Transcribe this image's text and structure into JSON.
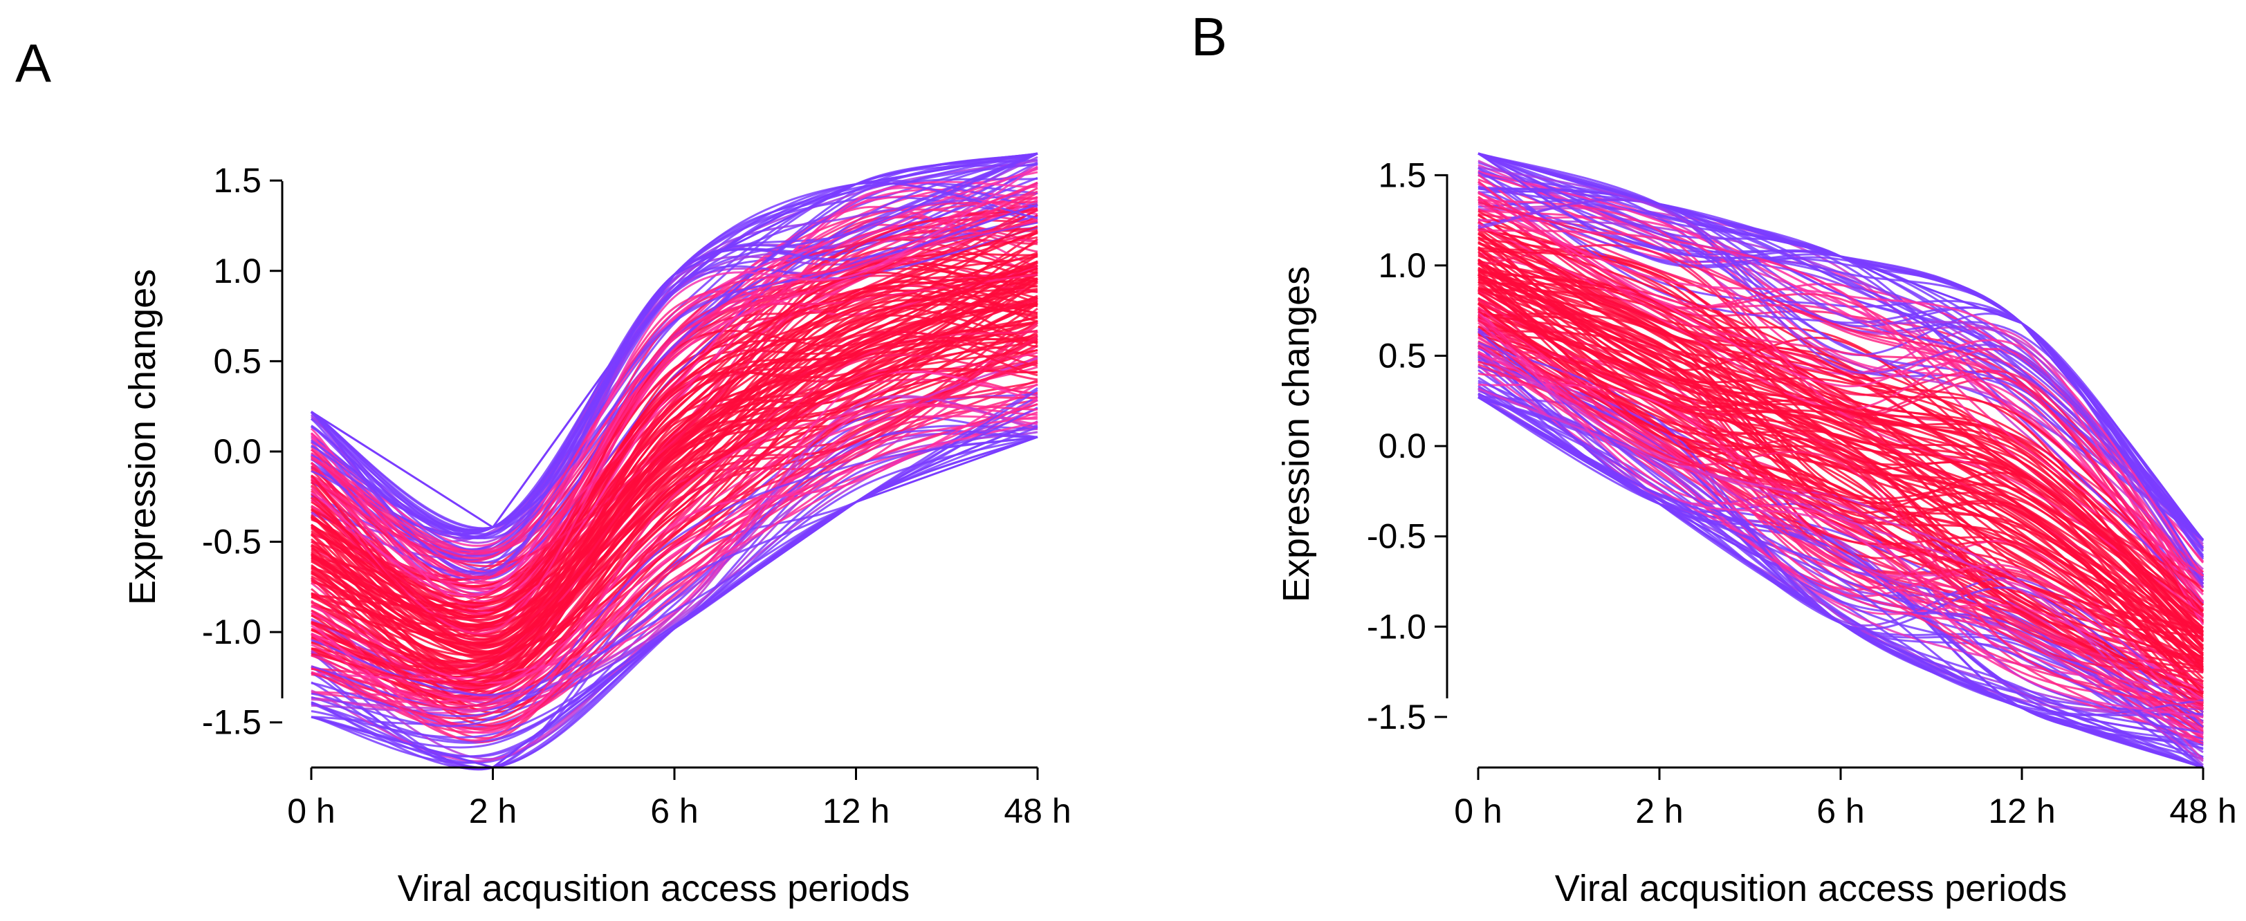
{
  "figure": {
    "colors": {
      "core": "#ff0a3c",
      "mid": "#ff33aa",
      "edge": "#7a3cff",
      "axis": "#000000"
    }
  },
  "chart_data": [
    {
      "panel": "A",
      "type": "line",
      "title": "",
      "xlabel": "Viral acqusition access periods",
      "ylabel": "Expression changes",
      "categories": [
        "0 h",
        "2 h",
        "6 h",
        "12 h",
        "48 h"
      ],
      "x": [
        0,
        1,
        2,
        3,
        4
      ],
      "yticks": [
        -1.5,
        -1.0,
        -0.5,
        0.0,
        0.5,
        1.0,
        1.5
      ],
      "ytick_labels": [
        "-1.5",
        "-1.0",
        "-0.5",
        "0.0",
        "0.5",
        "1.0",
        "1.5"
      ],
      "ylim": [
        -1.75,
        1.65
      ],
      "n_series_approx": 700,
      "series": [
        {
          "name": "upper envelope",
          "values": [
            0.22,
            -0.42,
            0.98,
            1.48,
            1.65
          ]
        },
        {
          "name": "lower envelope",
          "values": [
            -1.47,
            -1.75,
            -0.98,
            -0.28,
            0.08
          ]
        },
        {
          "name": "typical profile",
          "values": [
            -0.7,
            -0.9,
            0.2,
            0.7,
            0.95
          ]
        }
      ]
    },
    {
      "panel": "B",
      "type": "line",
      "title": "",
      "xlabel": "Viral acqusition access periods",
      "ylabel": "Expression changes",
      "categories": [
        "0 h",
        "2 h",
        "6 h",
        "12 h",
        "48 h"
      ],
      "x": [
        0,
        1,
        2,
        3,
        4
      ],
      "yticks": [
        -1.5,
        -1.0,
        -0.5,
        0.0,
        0.5,
        1.0,
        1.5
      ],
      "ytick_labels": [
        "-1.5",
        "-1.0",
        "-0.5",
        "0.0",
        "0.5",
        "1.0",
        "1.5"
      ],
      "ylim": [
        -1.78,
        1.62
      ],
      "n_series_approx": 700,
      "series": [
        {
          "name": "upper envelope",
          "values": [
            1.62,
            1.34,
            1.05,
            0.68,
            -0.52
          ]
        },
        {
          "name": "lower envelope",
          "values": [
            0.27,
            -0.32,
            -0.98,
            -1.45,
            -1.78
          ]
        },
        {
          "name": "typical profile",
          "values": [
            0.95,
            0.7,
            0.05,
            -0.45,
            -1.05
          ]
        }
      ]
    }
  ]
}
